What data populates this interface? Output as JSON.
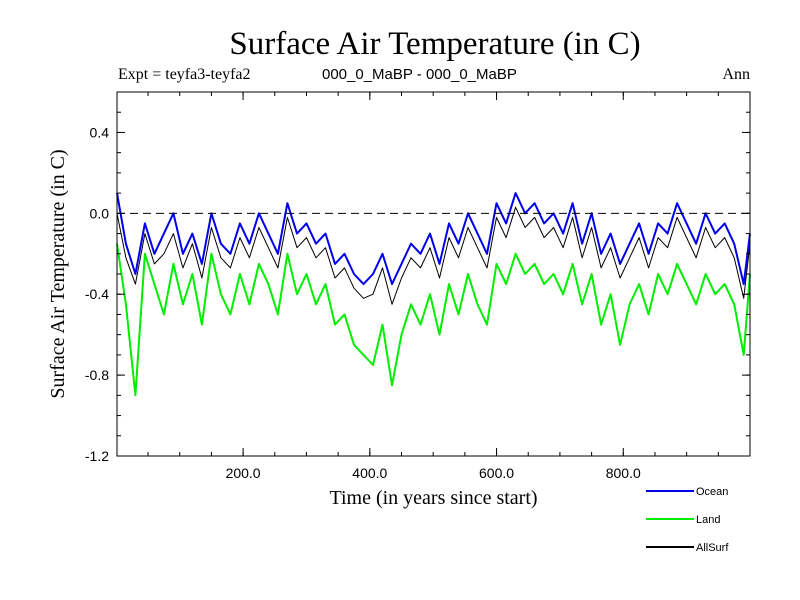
{
  "chart_data": {
    "type": "line",
    "title": "Surface Air Temperature (in C)",
    "subtitle_left": "Expt = teyfa3-teyfa2",
    "subtitle_center": "000_0_MaBP - 000_0_MaBP",
    "subtitle_right": "Ann",
    "xlabel": "Time (in years since start)",
    "ylabel": "Surface Air Temperature (in C)",
    "xlim": [
      1,
      1000
    ],
    "ylim": [
      -1.2,
      0.6
    ],
    "xticks": [
      200,
      400,
      600,
      800
    ],
    "xtick_labels": [
      "200.0",
      "400.0",
      "600.0",
      "800.0"
    ],
    "yticks": [
      -1.2,
      -0.8,
      -0.4,
      0.0,
      0.4
    ],
    "ytick_labels": [
      "-1.2",
      "-0.8",
      "-0.4",
      "0.0",
      "0.4"
    ],
    "reference_line": 0.0,
    "legend_position": "bottom-right",
    "series": [
      {
        "name": "Land",
        "color": "#00ee00",
        "x": [
          1,
          15,
          30,
          45,
          60,
          75,
          90,
          105,
          120,
          135,
          150,
          165,
          180,
          195,
          210,
          225,
          240,
          255,
          270,
          285,
          300,
          315,
          330,
          345,
          360,
          375,
          390,
          405,
          420,
          435,
          450,
          465,
          480,
          495,
          510,
          525,
          540,
          555,
          570,
          585,
          600,
          615,
          630,
          645,
          660,
          675,
          690,
          705,
          720,
          735,
          750,
          765,
          780,
          795,
          810,
          825,
          840,
          855,
          870,
          885,
          900,
          915,
          930,
          945,
          960,
          975,
          990,
          1000
        ],
        "values": [
          -0.15,
          -0.45,
          -0.9,
          -0.2,
          -0.35,
          -0.5,
          -0.25,
          -0.45,
          -0.3,
          -0.55,
          -0.2,
          -0.4,
          -0.5,
          -0.3,
          -0.45,
          -0.25,
          -0.35,
          -0.5,
          -0.2,
          -0.4,
          -0.3,
          -0.45,
          -0.35,
          -0.55,
          -0.5,
          -0.65,
          -0.7,
          -0.75,
          -0.55,
          -0.85,
          -0.6,
          -0.45,
          -0.55,
          -0.4,
          -0.6,
          -0.35,
          -0.5,
          -0.3,
          -0.45,
          -0.55,
          -0.25,
          -0.35,
          -0.2,
          -0.3,
          -0.25,
          -0.35,
          -0.3,
          -0.4,
          -0.25,
          -0.45,
          -0.3,
          -0.55,
          -0.4,
          -0.65,
          -0.45,
          -0.35,
          -0.5,
          -0.3,
          -0.4,
          -0.25,
          -0.35,
          -0.45,
          -0.3,
          -0.4,
          -0.35,
          -0.45,
          -0.7,
          -0.3
        ]
      },
      {
        "name": "Ocean",
        "color": "#0000ee",
        "x": [
          1,
          15,
          30,
          45,
          60,
          75,
          90,
          105,
          120,
          135,
          150,
          165,
          180,
          195,
          210,
          225,
          240,
          255,
          270,
          285,
          300,
          315,
          330,
          345,
          360,
          375,
          390,
          405,
          420,
          435,
          450,
          465,
          480,
          495,
          510,
          525,
          540,
          555,
          570,
          585,
          600,
          615,
          630,
          645,
          660,
          675,
          690,
          705,
          720,
          735,
          750,
          765,
          780,
          795,
          810,
          825,
          840,
          855,
          870,
          885,
          900,
          915,
          930,
          945,
          960,
          975,
          990,
          1000
        ],
        "values": [
          0.1,
          -0.15,
          -0.3,
          -0.05,
          -0.2,
          -0.1,
          0.0,
          -0.2,
          -0.1,
          -0.25,
          0.0,
          -0.15,
          -0.2,
          -0.05,
          -0.15,
          0.0,
          -0.1,
          -0.2,
          0.05,
          -0.1,
          -0.05,
          -0.15,
          -0.1,
          -0.25,
          -0.2,
          -0.3,
          -0.35,
          -0.3,
          -0.2,
          -0.35,
          -0.25,
          -0.15,
          -0.2,
          -0.1,
          -0.25,
          -0.05,
          -0.15,
          0.0,
          -0.1,
          -0.2,
          0.05,
          -0.05,
          0.1,
          0.0,
          0.05,
          -0.05,
          0.0,
          -0.1,
          0.05,
          -0.15,
          0.0,
          -0.2,
          -0.1,
          -0.25,
          -0.15,
          -0.05,
          -0.2,
          -0.05,
          -0.1,
          0.05,
          -0.05,
          -0.15,
          0.0,
          -0.1,
          -0.05,
          -0.15,
          -0.35,
          -0.1
        ]
      },
      {
        "name": "AllSurf",
        "color": "#000000",
        "x": [
          1,
          15,
          30,
          45,
          60,
          75,
          90,
          105,
          120,
          135,
          150,
          165,
          180,
          195,
          210,
          225,
          240,
          255,
          270,
          285,
          300,
          315,
          330,
          345,
          360,
          375,
          390,
          405,
          420,
          435,
          450,
          465,
          480,
          495,
          510,
          525,
          540,
          555,
          570,
          585,
          600,
          615,
          630,
          645,
          660,
          675,
          690,
          705,
          720,
          735,
          750,
          765,
          780,
          795,
          810,
          825,
          840,
          855,
          870,
          885,
          900,
          915,
          930,
          945,
          960,
          975,
          990,
          1000
        ],
        "values": [
          0.0,
          -0.22,
          -0.35,
          -0.1,
          -0.25,
          -0.2,
          -0.1,
          -0.27,
          -0.15,
          -0.32,
          -0.07,
          -0.22,
          -0.27,
          -0.12,
          -0.22,
          -0.07,
          -0.17,
          -0.27,
          -0.02,
          -0.17,
          -0.12,
          -0.22,
          -0.17,
          -0.32,
          -0.27,
          -0.37,
          -0.42,
          -0.4,
          -0.27,
          -0.45,
          -0.32,
          -0.22,
          -0.27,
          -0.17,
          -0.32,
          -0.12,
          -0.22,
          -0.07,
          -0.17,
          -0.27,
          -0.02,
          -0.12,
          0.03,
          -0.07,
          -0.02,
          -0.12,
          -0.07,
          -0.17,
          -0.02,
          -0.22,
          -0.07,
          -0.27,
          -0.17,
          -0.32,
          -0.22,
          -0.12,
          -0.27,
          -0.12,
          -0.17,
          -0.02,
          -0.12,
          -0.22,
          -0.07,
          -0.17,
          -0.12,
          -0.22,
          -0.42,
          -0.15
        ]
      }
    ]
  },
  "legend": {
    "items": [
      {
        "name": "Ocean",
        "color": "#0000ee"
      },
      {
        "name": "Land",
        "color": "#00ee00"
      },
      {
        "name": "AllSurf",
        "color": "#000000"
      }
    ]
  }
}
